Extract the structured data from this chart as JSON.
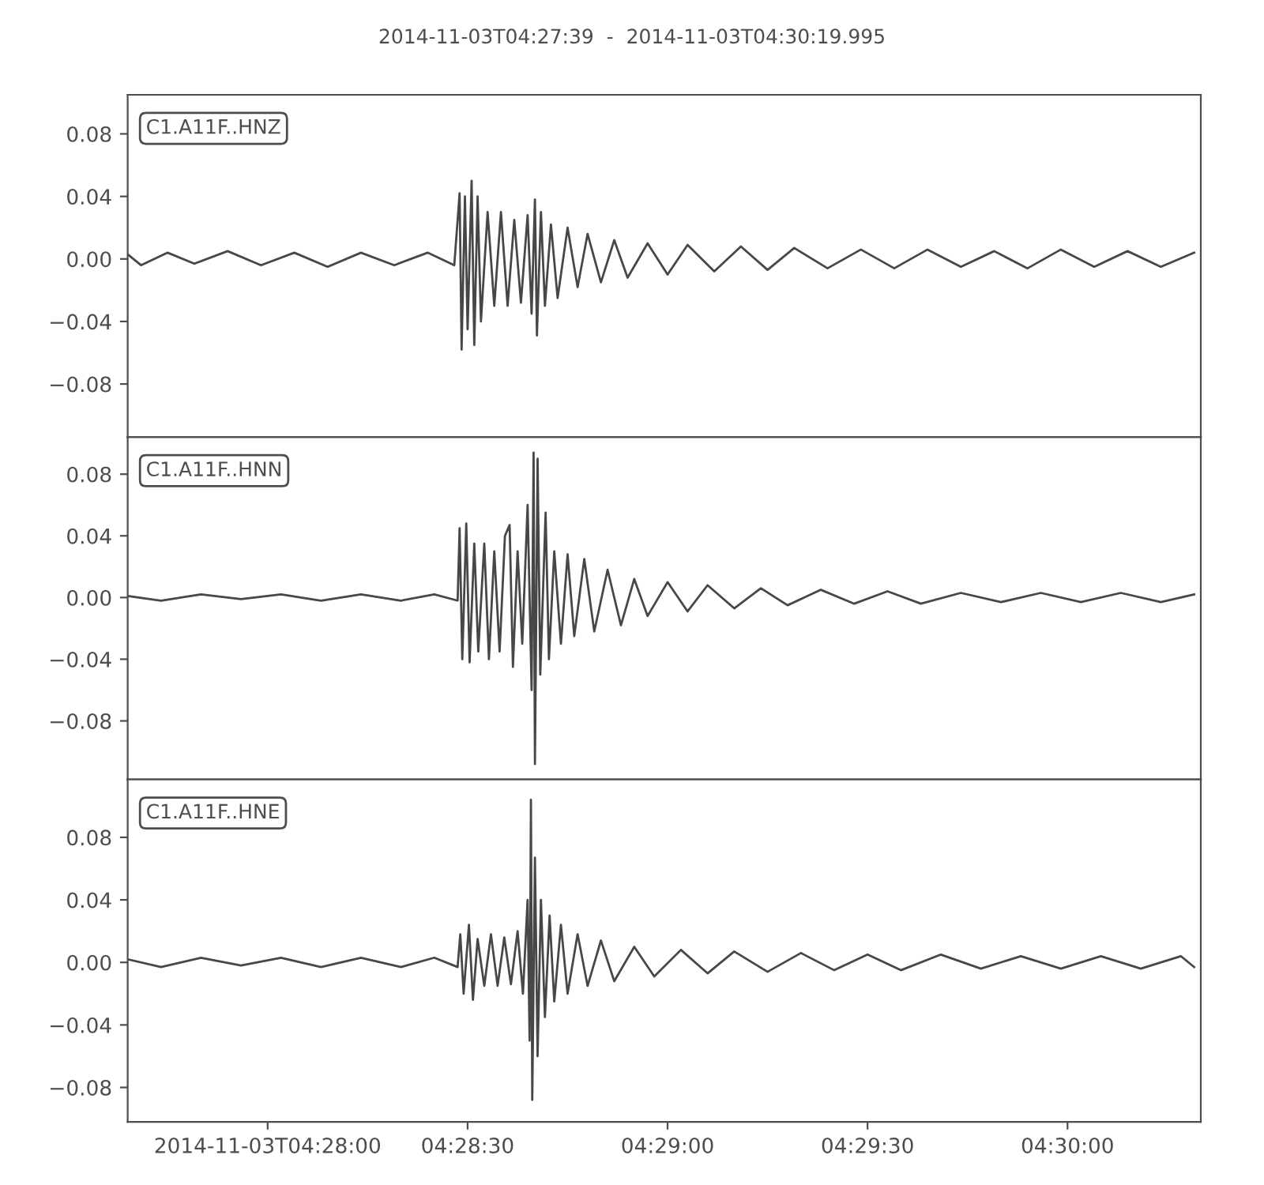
{
  "chart_data": [
    {
      "type": "line",
      "title": "2014-11-03T04:27:39  -  2014-11-03T04:30:19.995",
      "annotations": [
        "C1.A11F..HNZ"
      ],
      "x": [
        "2014-11-03T04:27:39",
        "2014-11-03T04:27:41",
        "2014-11-03T04:27:45",
        "2014-11-03T04:27:49",
        "2014-11-03T04:27:54",
        "2014-11-03T04:27:59",
        "2014-11-03T04:28:04",
        "2014-11-03T04:28:09",
        "2014-11-03T04:28:14",
        "2014-11-03T04:28:19",
        "2014-11-03T04:28:24",
        "2014-11-03T04:28:28",
        "2014-11-03T04:28:28.8",
        "2014-11-03T04:28:29.1",
        "2014-11-03T04:28:29.6",
        "2014-11-03T04:28:30",
        "2014-11-03T04:28:30.6",
        "2014-11-03T04:28:31",
        "2014-11-03T04:28:31.5",
        "2014-11-03T04:28:32",
        "2014-11-03T04:28:33",
        "2014-11-03T04:28:34",
        "2014-11-03T04:28:35",
        "2014-11-03T04:28:36",
        "2014-11-03T04:28:37",
        "2014-11-03T04:28:38",
        "2014-11-03T04:28:39",
        "2014-11-03T04:28:39.6",
        "2014-11-03T04:28:40.1",
        "2014-11-03T04:28:40.4",
        "2014-11-03T04:28:41",
        "2014-11-03T04:28:41.6",
        "2014-11-03T04:28:42.5",
        "2014-11-03T04:28:43.5",
        "2014-11-03T04:28:45",
        "2014-11-03T04:28:46.5",
        "2014-11-03T04:28:48",
        "2014-11-03T04:28:50",
        "2014-11-03T04:28:52",
        "2014-11-03T04:28:54",
        "2014-11-03T04:28:57",
        "2014-11-03T04:29:00",
        "2014-11-03T04:29:03",
        "2014-11-03T04:29:07",
        "2014-11-03T04:29:11",
        "2014-11-03T04:29:15",
        "2014-11-03T04:29:19",
        "2014-11-03T04:29:24",
        "2014-11-03T04:29:29",
        "2014-11-03T04:29:34",
        "2014-11-03T04:29:39",
        "2014-11-03T04:29:44",
        "2014-11-03T04:29:49",
        "2014-11-03T04:29:54",
        "2014-11-03T04:29:59",
        "2014-11-03T04:30:04",
        "2014-11-03T04:30:09",
        "2014-11-03T04:30:14",
        "2014-11-03T04:30:19"
      ],
      "series": [
        {
          "color": "#474747",
          "values": [
            0.003,
            -0.004,
            0.004,
            -0.003,
            0.005,
            -0.004,
            0.004,
            -0.005,
            0.004,
            -0.004,
            0.004,
            -0.004,
            0.042,
            -0.058,
            0.04,
            -0.045,
            0.05,
            -0.055,
            0.04,
            -0.04,
            0.03,
            -0.03,
            0.03,
            -0.03,
            0.025,
            -0.028,
            0.028,
            -0.035,
            0.038,
            -0.049,
            0.03,
            -0.03,
            0.022,
            -0.025,
            0.02,
            -0.018,
            0.016,
            -0.015,
            0.012,
            -0.012,
            0.01,
            -0.01,
            0.009,
            -0.008,
            0.008,
            -0.007,
            0.007,
            -0.006,
            0.006,
            -0.006,
            0.006,
            -0.005,
            0.005,
            -0.006,
            0.006,
            -0.005,
            0.005,
            -0.005,
            0.004
          ]
        }
      ],
      "xlim": [
        "2014-11-03T04:27:39",
        "2014-11-03T04:30:19.995"
      ],
      "xticks": [
        {
          "value": "2014-11-03T04:28:00",
          "label": null
        },
        {
          "value": "2014-11-03T04:28:30",
          "label": null
        },
        {
          "value": "2014-11-03T04:29:00",
          "label": null
        },
        {
          "value": "2014-11-03T04:29:30",
          "label": null
        },
        {
          "value": "2014-11-03T04:30:00",
          "label": null
        }
      ],
      "ylim": [
        -0.114,
        0.105
      ],
      "yticks": [
        {
          "value": -0.08,
          "label": "−0.08"
        },
        {
          "value": -0.04,
          "label": "−0.04"
        },
        {
          "value": 0,
          "label": "0.00"
        },
        {
          "value": 0.04,
          "label": "0.04"
        },
        {
          "value": 0.08,
          "label": "0.08"
        }
      ],
      "tick_labels": "y",
      "marker": "none",
      "line_style": "solid"
    },
    {
      "type": "line",
      "annotations": [
        "C1.A11F..HNN"
      ],
      "x": [
        "2014-11-03T04:27:39",
        "2014-11-03T04:27:44",
        "2014-11-03T04:27:50",
        "2014-11-03T04:27:56",
        "2014-11-03T04:28:02",
        "2014-11-03T04:28:08",
        "2014-11-03T04:28:14",
        "2014-11-03T04:28:20",
        "2014-11-03T04:28:25",
        "2014-11-03T04:28:28.5",
        "2014-11-03T04:28:28.8",
        "2014-11-03T04:28:29.2",
        "2014-11-03T04:28:29.8",
        "2014-11-03T04:28:30.3",
        "2014-11-03T04:28:31",
        "2014-11-03T04:28:31.6",
        "2014-11-03T04:28:32.5",
        "2014-11-03T04:28:33.2",
        "2014-11-03T04:28:34",
        "2014-11-03T04:28:34.8",
        "2014-11-03T04:28:35.6",
        "2014-11-03T04:28:36.3",
        "2014-11-03T04:28:36.8",
        "2014-11-03T04:28:37.5",
        "2014-11-03T04:28:38.2",
        "2014-11-03T04:28:39",
        "2014-11-03T04:28:39.6",
        "2014-11-03T04:28:39.9",
        "2014-11-03T04:28:40.1",
        "2014-11-03T04:28:40.5",
        "2014-11-03T04:28:40.9",
        "2014-11-03T04:28:41.7",
        "2014-11-03T04:28:42.2",
        "2014-11-03T04:28:43",
        "2014-11-03T04:28:44",
        "2014-11-03T04:28:45",
        "2014-11-03T04:28:46",
        "2014-11-03T04:28:47.5",
        "2014-11-03T04:28:49",
        "2014-11-03T04:28:51",
        "2014-11-03T04:28:53",
        "2014-11-03T04:28:55",
        "2014-11-03T04:28:57",
        "2014-11-03T04:29:00",
        "2014-11-03T04:29:03",
        "2014-11-03T04:29:06",
        "2014-11-03T04:29:10",
        "2014-11-03T04:29:14",
        "2014-11-03T04:29:18",
        "2014-11-03T04:29:23",
        "2014-11-03T04:29:28",
        "2014-11-03T04:29:33",
        "2014-11-03T04:29:38",
        "2014-11-03T04:29:44",
        "2014-11-03T04:29:50",
        "2014-11-03T04:29:56",
        "2014-11-03T04:30:02",
        "2014-11-03T04:30:08",
        "2014-11-03T04:30:14",
        "2014-11-03T04:30:19"
      ],
      "series": [
        {
          "color": "#474747",
          "values": [
            0.001,
            -0.002,
            0.002,
            -0.001,
            0.002,
            -0.002,
            0.002,
            -0.002,
            0.002,
            -0.002,
            0.045,
            -0.04,
            0.048,
            -0.042,
            0.035,
            -0.035,
            0.035,
            -0.04,
            0.03,
            -0.035,
            0.04,
            0.047,
            -0.045,
            0.03,
            -0.03,
            0.06,
            -0.06,
            0.094,
            -0.108,
            0.09,
            -0.05,
            0.055,
            -0.04,
            0.03,
            -0.03,
            0.028,
            -0.025,
            0.025,
            -0.022,
            0.018,
            -0.018,
            0.012,
            -0.012,
            0.01,
            -0.009,
            0.008,
            -0.007,
            0.006,
            -0.005,
            0.005,
            -0.004,
            0.004,
            -0.004,
            0.003,
            -0.003,
            0.003,
            -0.003,
            0.003,
            -0.003,
            0.002
          ]
        }
      ],
      "xlim": [
        "2014-11-03T04:27:39",
        "2014-11-03T04:30:19.995"
      ],
      "xticks": [
        {
          "value": "2014-11-03T04:28:00",
          "label": null
        },
        {
          "value": "2014-11-03T04:28:30",
          "label": null
        },
        {
          "value": "2014-11-03T04:29:00",
          "label": null
        },
        {
          "value": "2014-11-03T04:29:30",
          "label": null
        },
        {
          "value": "2014-11-03T04:30:00",
          "label": null
        }
      ],
      "ylim": [
        -0.118,
        0.104
      ],
      "yticks": [
        {
          "value": -0.08,
          "label": "−0.08"
        },
        {
          "value": -0.04,
          "label": "−0.04"
        },
        {
          "value": 0,
          "label": "0.00"
        },
        {
          "value": 0.04,
          "label": "0.04"
        },
        {
          "value": 0.08,
          "label": "0.08"
        }
      ],
      "tick_labels": "y",
      "marker": "none",
      "line_style": "solid"
    },
    {
      "type": "line",
      "annotations": [
        "C1.A11F..HNE"
      ],
      "x": [
        "2014-11-03T04:27:39",
        "2014-11-03T04:27:44",
        "2014-11-03T04:27:50",
        "2014-11-03T04:27:56",
        "2014-11-03T04:28:02",
        "2014-11-03T04:28:08",
        "2014-11-03T04:28:14",
        "2014-11-03T04:28:20",
        "2014-11-03T04:28:25",
        "2014-11-03T04:28:28.5",
        "2014-11-03T04:28:28.9",
        "2014-11-03T04:28:29.4",
        "2014-11-03T04:28:30.2",
        "2014-11-03T04:28:30.8",
        "2014-11-03T04:28:31.5",
        "2014-11-03T04:28:32.5",
        "2014-11-03T04:28:33.5",
        "2014-11-03T04:28:34.5",
        "2014-11-03T04:28:35.5",
        "2014-11-03T04:28:36.5",
        "2014-11-03T04:28:37.5",
        "2014-11-03T04:28:38.3",
        "2014-11-03T04:28:39",
        "2014-11-03T04:28:39.3",
        "2014-11-03T04:28:39.5",
        "2014-11-03T04:28:39.7",
        "2014-11-03T04:28:40.1",
        "2014-11-03T04:28:40.5",
        "2014-11-03T04:28:41",
        "2014-11-03T04:28:41.6",
        "2014-11-03T04:28:42.3",
        "2014-11-03T04:28:43",
        "2014-11-03T04:28:44",
        "2014-11-03T04:28:45",
        "2014-11-03T04:28:46.5",
        "2014-11-03T04:28:48",
        "2014-11-03T04:28:50",
        "2014-11-03T04:28:52",
        "2014-11-03T04:28:55",
        "2014-11-03T04:28:58",
        "2014-11-03T04:29:02",
        "2014-11-03T04:29:06",
        "2014-11-03T04:29:10",
        "2014-11-03T04:29:15",
        "2014-11-03T04:29:20",
        "2014-11-03T04:29:25",
        "2014-11-03T04:29:30",
        "2014-11-03T04:29:35",
        "2014-11-03T04:29:41",
        "2014-11-03T04:29:47",
        "2014-11-03T04:29:53",
        "2014-11-03T04:29:59",
        "2014-11-03T04:30:05",
        "2014-11-03T04:30:11",
        "2014-11-03T04:30:17",
        "2014-11-03T04:30:19"
      ],
      "series": [
        {
          "color": "#474747",
          "values": [
            0.002,
            -0.003,
            0.003,
            -0.002,
            0.003,
            -0.003,
            0.003,
            -0.003,
            0.003,
            -0.003,
            0.018,
            -0.02,
            0.024,
            -0.024,
            0.015,
            -0.015,
            0.018,
            -0.015,
            0.016,
            -0.014,
            0.02,
            -0.02,
            0.04,
            -0.05,
            0.104,
            -0.088,
            0.067,
            -0.06,
            0.04,
            -0.035,
            0.03,
            -0.025,
            0.024,
            -0.02,
            0.018,
            -0.015,
            0.014,
            -0.012,
            0.01,
            -0.009,
            0.008,
            -0.007,
            0.007,
            -0.006,
            0.006,
            -0.005,
            0.005,
            -0.005,
            0.005,
            -0.004,
            0.004,
            -0.004,
            0.004,
            -0.004,
            0.004,
            -0.003
          ]
        }
      ],
      "xlim": [
        "2014-11-03T04:27:39",
        "2014-11-03T04:30:19.995"
      ],
      "xticks": [
        {
          "value": "2014-11-03T04:28:00",
          "label": "2014-11-03T04:28:00"
        },
        {
          "value": "2014-11-03T04:28:30",
          "label": "04:28:30"
        },
        {
          "value": "2014-11-03T04:29:00",
          "label": "04:29:00"
        },
        {
          "value": "2014-11-03T04:29:30",
          "label": "04:29:30"
        },
        {
          "value": "2014-11-03T04:30:00",
          "label": "04:30:00"
        }
      ],
      "ylim": [
        -0.102,
        0.117
      ],
      "yticks": [
        {
          "value": -0.08,
          "label": "−0.08"
        },
        {
          "value": -0.04,
          "label": "−0.04"
        },
        {
          "value": 0,
          "label": "0.00"
        },
        {
          "value": 0.04,
          "label": "0.04"
        },
        {
          "value": 0.08,
          "label": "0.08"
        }
      ],
      "marker": "none",
      "line_style": "solid"
    }
  ]
}
